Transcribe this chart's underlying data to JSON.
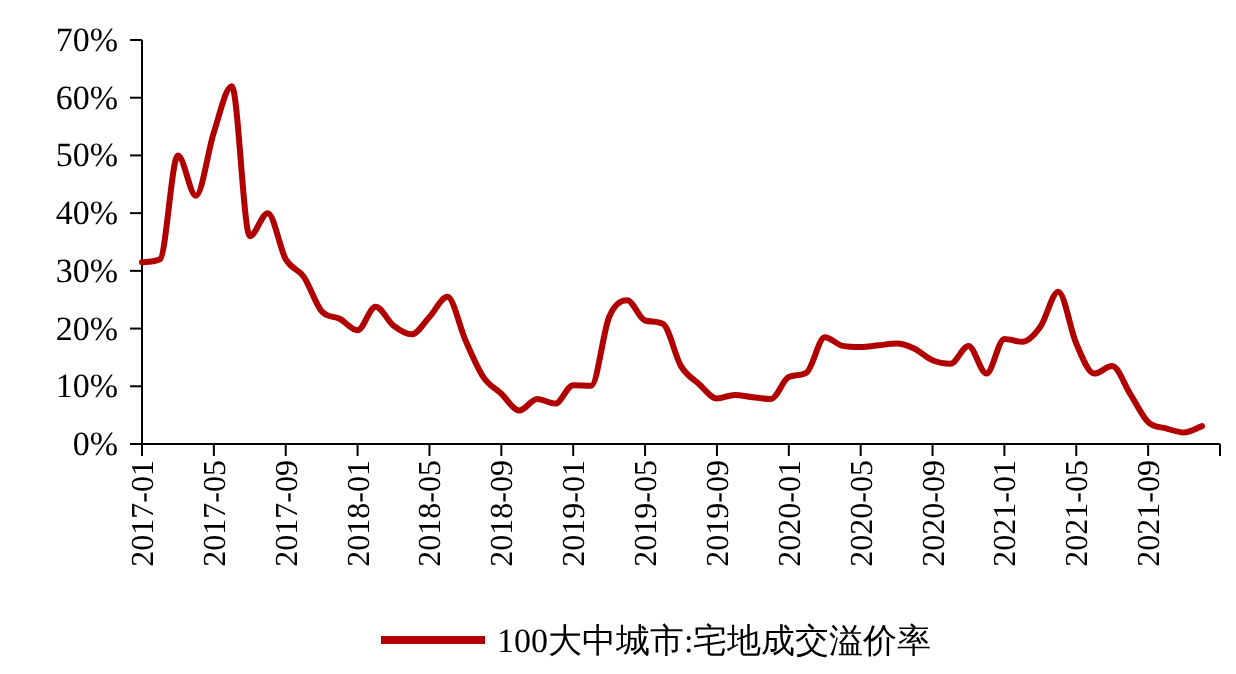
{
  "chart_data": {
    "type": "line",
    "legend": "bottom",
    "grid": false,
    "marker": "none",
    "line_style": "solid",
    "xlim": [
      "2017-01",
      "2022-01"
    ],
    "xticks": [
      "2017-01",
      "2017-05",
      "2017-09",
      "2018-01",
      "2018-05",
      "2018-09",
      "2019-01",
      "2019-05",
      "2019-09",
      "2020-01",
      "2020-05",
      "2020-09",
      "2021-01",
      "2021-05",
      "2021-09",
      {
        "value": "2022-01",
        "label": null
      }
    ],
    "ylim": [
      0,
      70
    ],
    "yticks": [
      {
        "value": 0,
        "label": "0%"
      },
      {
        "value": 10,
        "label": "10%"
      },
      {
        "value": 20,
        "label": "20%"
      },
      {
        "value": 30,
        "label": "30%"
      },
      {
        "value": 40,
        "label": "40%"
      },
      {
        "value": 50,
        "label": "50%"
      },
      {
        "value": 60,
        "label": "60%"
      },
      {
        "value": 70,
        "label": "70%"
      }
    ],
    "x": [
      "2017-01",
      "2017-02",
      "2017-03",
      "2017-04",
      "2017-05",
      "2017-06",
      "2017-07",
      "2017-08",
      "2017-09",
      "2017-10",
      "2017-11",
      "2017-12",
      "2018-01",
      "2018-02",
      "2018-03",
      "2018-04",
      "2018-05",
      "2018-06",
      "2018-07",
      "2018-08",
      "2018-09",
      "2018-10",
      "2018-11",
      "2018-12",
      "2019-01",
      "2019-02",
      "2019-03",
      "2019-04",
      "2019-05",
      "2019-06",
      "2019-07",
      "2019-08",
      "2019-09",
      "2019-10",
      "2019-11",
      "2019-12",
      "2020-01",
      "2020-02",
      "2020-03",
      "2020-04",
      "2020-05",
      "2020-06",
      "2020-07",
      "2020-08",
      "2020-09",
      "2020-10",
      "2020-11",
      "2020-12",
      "2021-01",
      "2021-02",
      "2021-03",
      "2021-04",
      "2021-05",
      "2021-06",
      "2021-07",
      "2021-08",
      "2021-09",
      "2021-10",
      "2021-11",
      "2021-12"
    ],
    "series": [
      {
        "name": "100大中城市:宅地成交溢价率",
        "color": "#b00000",
        "values": [
          31.5,
          32,
          50,
          43,
          54,
          62,
          36,
          40,
          32,
          29,
          23,
          21.7,
          19.7,
          23.8,
          20.5,
          19,
          22,
          25.5,
          18,
          11.6,
          8.7,
          5.8,
          7.8,
          7,
          10.2,
          10.1,
          22,
          24.9,
          21.4,
          20.8,
          13.5,
          10.4,
          7.9,
          8.5,
          8.1,
          7.8,
          11.6,
          12.4,
          18.5,
          17,
          16.8,
          17.1,
          17.4,
          16.5,
          14.5,
          13.9,
          17,
          12.2,
          18.2,
          17.7,
          20.3,
          26.4,
          17.4,
          12.2,
          13.5,
          8.7,
          3.8,
          2.7,
          2,
          3.1
        ]
      }
    ]
  }
}
